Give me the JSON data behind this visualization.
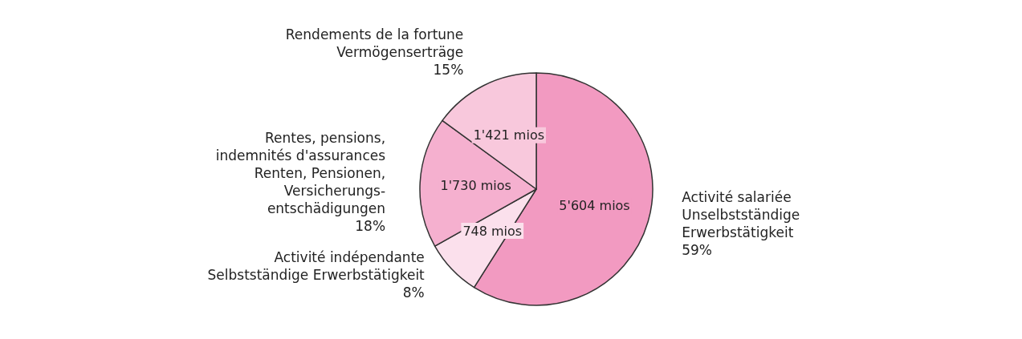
{
  "chart_data": {
    "type": "pie",
    "categories": [
      "Activité salariée\nUnselbstständige\nErwerbstätigkeit\n59%",
      "Activité indépendante\nSelbstständige Erwerbstätigkeit\n8%",
      "Rentes, pensions,\nindemnités d'assurances\nRenten, Pensionen,\nVersicherungs-\nentschädigungen\n18%",
      "Rendements de la fortune\nVermögenserträge\n15%"
    ],
    "values": [
      5604,
      748,
      1730,
      1421
    ],
    "value_labels": [
      "5'604 mios",
      "748 mios",
      "1'730 mios",
      "1'421 mios"
    ],
    "colors": [
      "#f29ac1",
      "#fbe0ec",
      "#f5b0cf",
      "#f8c8dc"
    ]
  }
}
